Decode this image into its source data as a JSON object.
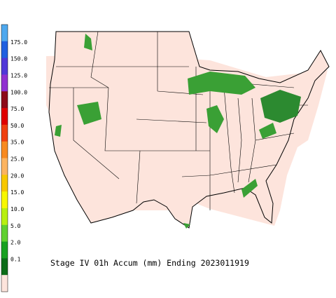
{
  "title": "Stage IV 01h Accum (mm) Ending 2023011919",
  "legend": [
    {
      "label": null,
      "color": "#4ea8ee"
    },
    {
      "label": "175.0",
      "color": "#2060e0"
    },
    {
      "label": "150.0",
      "color": "#5038d8"
    },
    {
      "label": "125.0",
      "color": "#9030d0"
    },
    {
      "label": "100.0",
      "color": "#8c0a18"
    },
    {
      "label": "75.0",
      "color": "#e00000"
    },
    {
      "label": "50.0",
      "color": "#f04010"
    },
    {
      "label": "35.0",
      "color": "#f88a20"
    },
    {
      "label": "25.0",
      "color": "#fcb460"
    },
    {
      "label": "20.0",
      "color": "#f8c800"
    },
    {
      "label": "15.0",
      "color": "#f8f800"
    },
    {
      "label": "10.0",
      "color": "#b8f010"
    },
    {
      "label": "5.0",
      "color": "#60d030"
    },
    {
      "label": "2.0",
      "color": "#18a020"
    },
    {
      "label": "0.1",
      "color": "#0c6c18"
    },
    {
      "label": null,
      "color": "#fde4dc"
    }
  ]
}
